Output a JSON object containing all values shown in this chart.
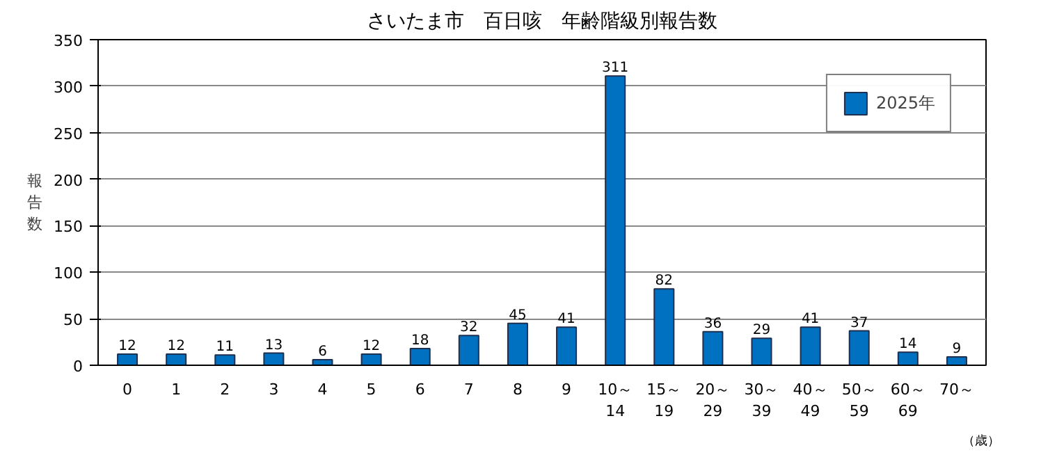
{
  "chart_data": {
    "type": "bar",
    "title": "さいたま市　百日咳　年齢階級別報告数",
    "ylabel": "報告数",
    "categories": [
      "0",
      "1",
      "2",
      "3",
      "4",
      "5",
      "6",
      "7",
      "8",
      "9",
      "10～\n14",
      "15～\n19",
      "20～\n29",
      "30～\n39",
      "40～\n49",
      "50～\n59",
      "60～\n69",
      "70～"
    ],
    "series": [
      {
        "name": "2025年",
        "color": "#0070c0",
        "values": [
          12,
          12,
          11,
          13,
          6,
          12,
          18,
          32,
          45,
          41,
          311,
          82,
          36,
          29,
          41,
          37,
          14,
          9
        ]
      }
    ],
    "annotations": [
      "（歳）"
    ],
    "ylim": [
      0,
      350
    ],
    "yticks": [
      0,
      50,
      100,
      150,
      200,
      250,
      300,
      350
    ],
    "grid": "y",
    "legend": "top right",
    "data_labels": true
  }
}
